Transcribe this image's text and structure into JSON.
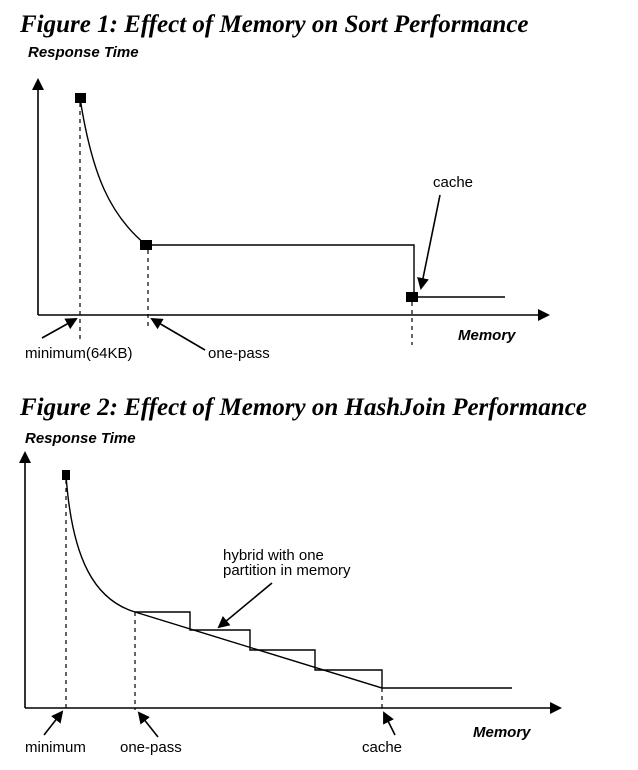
{
  "figure1": {
    "title": "Figure 1: Effect of Memory on Sort Performance",
    "y_axis_label": "Response Time",
    "x_axis_label": "Memory",
    "annotations": {
      "minimum": "minimum(64KB)",
      "one_pass": "one-pass",
      "cache": "cache"
    }
  },
  "figure2": {
    "title": "Figure 2: Effect of Memory on HashJoin Performance",
    "y_axis_label": "Response Time",
    "x_axis_label": "Memory",
    "annotations": {
      "hybrid_line1": "hybrid with one",
      "hybrid_line2": "partition in memory",
      "minimum": "minimum",
      "one_pass": "one-pass",
      "cache": "cache"
    }
  }
}
